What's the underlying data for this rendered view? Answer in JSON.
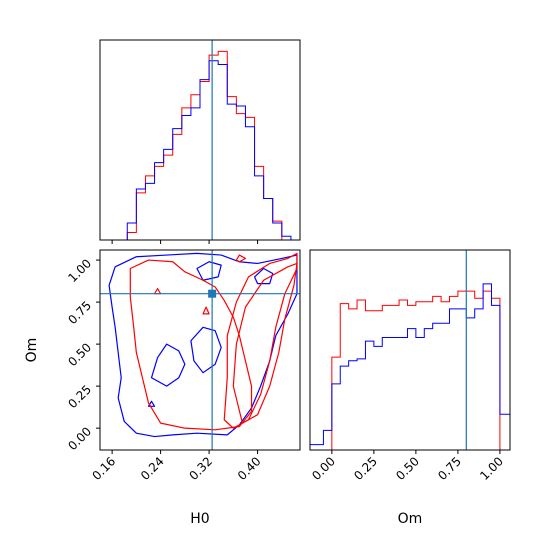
{
  "chart_data": [
    {
      "type": "histogram",
      "panel": "H0 marginal",
      "xlim": [
        0.14,
        0.47
      ],
      "truth": 0.325,
      "yticks": "hidden",
      "series": [
        {
          "color": "#ff0000",
          "edges": [
            0.14,
            0.155,
            0.17,
            0.185,
            0.2,
            0.215,
            0.23,
            0.245,
            0.26,
            0.275,
            0.29,
            0.305,
            0.32,
            0.335,
            0.35,
            0.365,
            0.38,
            0.395,
            0.41,
            0.425,
            0.44,
            0.455,
            0.47
          ],
          "values": [
            0,
            0,
            0,
            0.04,
            0.25,
            0.34,
            0.39,
            0.45,
            0.56,
            0.7,
            0.77,
            0.84,
            0.98,
            1.0,
            0.76,
            0.67,
            0.65,
            0.39,
            0.22,
            0.1,
            0,
            0
          ]
        },
        {
          "color": "#0000ff",
          "edges": [
            0.14,
            0.155,
            0.17,
            0.185,
            0.2,
            0.215,
            0.23,
            0.245,
            0.26,
            0.275,
            0.29,
            0.305,
            0.32,
            0.335,
            0.35,
            0.365,
            0.38,
            0.395,
            0.41,
            0.425,
            0.44,
            0.455,
            0.47
          ],
          "values": [
            0,
            0,
            0,
            0.09,
            0.27,
            0.3,
            0.41,
            0.48,
            0.59,
            0.66,
            0.7,
            0.85,
            0.95,
            0.93,
            0.72,
            0.71,
            0.6,
            0.34,
            0.22,
            0.09,
            0.02,
            0
          ]
        }
      ]
    },
    {
      "type": "contour",
      "panel": "H0 vs Om",
      "xlabel": "H0",
      "ylabel": "Om",
      "xlim": [
        0.14,
        0.47
      ],
      "ylim": [
        -0.13,
        1.06
      ],
      "xticks": [
        "0.16",
        "0.24",
        "0.32",
        "0.40"
      ],
      "yticks": [
        "0.00",
        "0.25",
        "0.50",
        "0.75",
        "1.00"
      ],
      "truth": [
        0.325,
        0.8
      ],
      "series": [
        {
          "color": "#0000ff",
          "contours": [
            [
              [
                0.155,
                0.85
              ],
              [
                0.165,
                0.96
              ],
              [
                0.2,
                1.02
              ],
              [
                0.25,
                1.03
              ],
              [
                0.3,
                1.04
              ],
              [
                0.34,
                1.03
              ],
              [
                0.37,
                0.99
              ],
              [
                0.4,
                0.98
              ],
              [
                0.44,
                1.01
              ],
              [
                0.465,
                1.03
              ],
              [
                0.465,
                0.8
              ],
              [
                0.45,
                0.68
              ],
              [
                0.43,
                0.55
              ],
              [
                0.42,
                0.4
              ],
              [
                0.405,
                0.25
              ],
              [
                0.39,
                0.12
              ],
              [
                0.37,
                0.02
              ],
              [
                0.35,
                -0.04
              ],
              [
                0.3,
                -0.03
              ],
              [
                0.26,
                -0.04
              ],
              [
                0.23,
                -0.05
              ],
              [
                0.2,
                -0.03
              ],
              [
                0.18,
                0.04
              ],
              [
                0.17,
                0.18
              ],
              [
                0.175,
                0.3
              ],
              [
                0.17,
                0.45
              ],
              [
                0.165,
                0.6
              ],
              [
                0.16,
                0.72
              ],
              [
                0.155,
                0.85
              ]
            ],
            [
              [
                0.225,
                0.3
              ],
              [
                0.235,
                0.42
              ],
              [
                0.25,
                0.5
              ],
              [
                0.27,
                0.46
              ],
              [
                0.28,
                0.38
              ],
              [
                0.27,
                0.3
              ],
              [
                0.25,
                0.25
              ],
              [
                0.225,
                0.3
              ]
            ],
            [
              [
                0.29,
                0.52
              ],
              [
                0.31,
                0.6
              ],
              [
                0.33,
                0.58
              ],
              [
                0.34,
                0.48
              ],
              [
                0.33,
                0.38
              ],
              [
                0.31,
                0.33
              ],
              [
                0.295,
                0.4
              ],
              [
                0.29,
                0.52
              ]
            ],
            [
              [
                0.3,
                0.95
              ],
              [
                0.32,
                0.99
              ],
              [
                0.34,
                0.97
              ],
              [
                0.335,
                0.9
              ],
              [
                0.31,
                0.88
              ],
              [
                0.3,
                0.95
              ]
            ],
            [
              [
                0.395,
                0.9
              ],
              [
                0.41,
                0.95
              ],
              [
                0.425,
                0.92
              ],
              [
                0.42,
                0.86
              ],
              [
                0.4,
                0.86
              ],
              [
                0.395,
                0.9
              ]
            ],
            [
              [
                0.22,
                0.13
              ],
              [
                0.225,
                0.16
              ],
              [
                0.23,
                0.13
              ],
              [
                0.22,
                0.13
              ]
            ]
          ]
        },
        {
          "color": "#ff0000",
          "contours": [
            [
              [
                0.19,
                0.95
              ],
              [
                0.22,
                1.0
              ],
              [
                0.26,
                0.99
              ],
              [
                0.28,
                0.93
              ],
              [
                0.31,
                0.88
              ],
              [
                0.33,
                0.84
              ],
              [
                0.345,
                0.76
              ],
              [
                0.36,
                0.66
              ],
              [
                0.37,
                0.55
              ],
              [
                0.38,
                0.4
              ],
              [
                0.39,
                0.25
              ],
              [
                0.39,
                0.1
              ],
              [
                0.37,
                0.01
              ],
              [
                0.33,
                -0.01
              ],
              [
                0.28,
                0.0
              ],
              [
                0.24,
                0.03
              ],
              [
                0.22,
                0.15
              ],
              [
                0.21,
                0.3
              ],
              [
                0.2,
                0.45
              ],
              [
                0.195,
                0.62
              ],
              [
                0.19,
                0.78
              ],
              [
                0.19,
                0.95
              ]
            ],
            [
              [
                0.35,
                0.3
              ],
              [
                0.35,
                0.55
              ],
              [
                0.365,
                0.75
              ],
              [
                0.385,
                0.9
              ],
              [
                0.42,
                0.98
              ],
              [
                0.45,
                1.01
              ],
              [
                0.465,
                1.04
              ],
              [
                0.465,
                0.95
              ],
              [
                0.445,
                0.8
              ],
              [
                0.43,
                0.6
              ],
              [
                0.42,
                0.4
              ],
              [
                0.405,
                0.2
              ],
              [
                0.385,
                0.05
              ],
              [
                0.36,
                0.0
              ],
              [
                0.345,
                0.05
              ],
              [
                0.35,
                0.3
              ]
            ],
            [
              [
                0.36,
                0.25
              ],
              [
                0.365,
                0.5
              ],
              [
                0.38,
                0.72
              ],
              [
                0.41,
                0.88
              ],
              [
                0.45,
                0.96
              ],
              [
                0.465,
                0.98
              ],
              [
                0.46,
                0.85
              ],
              [
                0.445,
                0.65
              ],
              [
                0.435,
                0.45
              ],
              [
                0.42,
                0.25
              ],
              [
                0.4,
                0.08
              ],
              [
                0.375,
                0.03
              ],
              [
                0.36,
                0.25
              ]
            ],
            [
              [
                0.365,
                1.0
              ],
              [
                0.37,
                1.03
              ],
              [
                0.38,
                1.01
              ],
              [
                0.37,
                0.99
              ],
              [
                0.365,
                1.0
              ]
            ],
            [
              [
                0.23,
                0.8
              ],
              [
                0.235,
                0.83
              ],
              [
                0.24,
                0.8
              ],
              [
                0.23,
                0.8
              ]
            ],
            [
              [
                0.31,
                0.68
              ],
              [
                0.315,
                0.72
              ],
              [
                0.32,
                0.68
              ],
              [
                0.31,
                0.68
              ]
            ]
          ]
        }
      ]
    },
    {
      "type": "histogram",
      "panel": "Om marginal",
      "xlabel": "Om",
      "xlim": [
        -0.13,
        1.06
      ],
      "xticks": [
        "0.00",
        "0.25",
        "0.50",
        "0.75",
        "1.00"
      ],
      "truth": 0.8,
      "yticks": "hidden",
      "series": [
        {
          "color": "#ff0000",
          "edges": [
            -0.13,
            -0.05,
            0.0,
            0.05,
            0.1,
            0.15,
            0.2,
            0.25,
            0.3,
            0.35,
            0.4,
            0.45,
            0.5,
            0.55,
            0.6,
            0.65,
            0.7,
            0.75,
            0.8,
            0.85,
            0.9,
            0.95,
            1.0,
            1.06
          ],
          "values": [
            0,
            0,
            0.52,
            0.82,
            0.79,
            0.84,
            0.78,
            0.78,
            0.81,
            0.81,
            0.84,
            0.81,
            0.83,
            0.83,
            0.86,
            0.83,
            0.86,
            0.89,
            0.89,
            0.85,
            0.89,
            0.85,
            0
          ]
        },
        {
          "color": "#0000ff",
          "edges": [
            -0.13,
            -0.05,
            0.0,
            0.05,
            0.1,
            0.15,
            0.2,
            0.25,
            0.3,
            0.35,
            0.4,
            0.45,
            0.5,
            0.55,
            0.6,
            0.65,
            0.7,
            0.75,
            0.8,
            0.85,
            0.9,
            0.95,
            1.0,
            1.06
          ],
          "values": [
            0.03,
            0.11,
            0.37,
            0.47,
            0.5,
            0.51,
            0.61,
            0.58,
            0.63,
            0.63,
            0.63,
            0.68,
            0.63,
            0.68,
            0.71,
            0.71,
            0.79,
            0.79,
            0.74,
            0.79,
            0.93,
            0.81,
            0.2
          ]
        }
      ]
    }
  ]
}
